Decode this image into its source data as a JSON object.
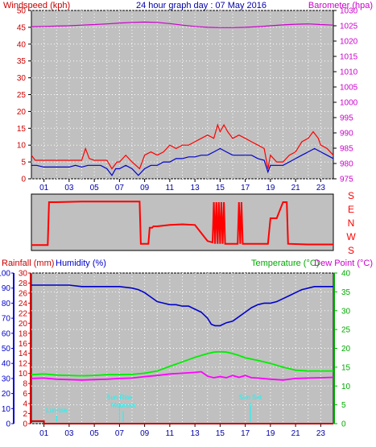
{
  "colors": {
    "plot_bg": "#c0c0c0",
    "grid": "#ffffff",
    "wind_gust": "#ff0000",
    "wind_avg": "#0000cc",
    "barometer": "#cc00cc",
    "direction": "#ff0000",
    "rain": "#cc0000",
    "humidity": "#0000cc",
    "temperature": "#00ee00",
    "dewpoint": "#ff00ff",
    "astro": "#00ffff",
    "title": "#0000aa",
    "axis_red": "#cc0000",
    "axis_magenta": "#cc00cc",
    "axis_green": "#00aa00"
  },
  "header": {
    "title": "24 hour graph day : 07 May 2016",
    "wind_label": "Windspeed (kph)",
    "baro_label": "Barometer (hpa)"
  },
  "direction_panel": {
    "labels": [
      "S",
      "E",
      "N",
      "W",
      "S"
    ]
  },
  "lower_header": {
    "rain_label": "Rainfall (mm)",
    "humidity_label": "Humidity (%)",
    "temp_label": "Temperature (°C)",
    "dew_label": "Dew Point (°C)"
  },
  "astro_labels": {
    "lunar": "Lunrise",
    "sunrise": "Sun Rise",
    "moonset": "Moonset",
    "sunset": "Sun Set"
  },
  "chart_data": [
    {
      "type": "line",
      "title": "24 hour graph day : 07 May 2016",
      "x_ticks": [
        "01",
        "03",
        "05",
        "07",
        "09",
        "11",
        "13",
        "15",
        "17",
        "19",
        "21",
        "23"
      ],
      "xlim": [
        0,
        24
      ],
      "y_left": {
        "label": "Windspeed (kph)",
        "ylim": [
          0,
          50
        ],
        "ticks": [
          0,
          5,
          10,
          15,
          20,
          25,
          30,
          35,
          40,
          45,
          50
        ]
      },
      "y_right": {
        "label": "Barometer (hpa)",
        "ylim": [
          975,
          1030
        ],
        "ticks": [
          975,
          980,
          985,
          990,
          995,
          1000,
          1005,
          1010,
          1015,
          1020,
          1025,
          1030
        ]
      },
      "series": [
        {
          "axis": "left",
          "x": [
            0,
            0.3,
            1,
            2,
            3,
            4,
            4.3,
            4.6,
            5,
            6,
            6.4,
            6.8,
            7,
            7.5,
            8,
            8.6,
            9,
            9.5,
            10,
            10.5,
            11,
            11.5,
            12,
            12.5,
            13,
            13.5,
            14,
            14.5,
            14.8,
            15,
            15.3,
            15.6,
            16,
            16.5,
            17,
            17.5,
            18,
            18.5,
            18.8,
            19,
            19.5,
            20,
            20.5,
            21,
            21.5,
            22,
            22.4,
            22.8,
            23,
            23.5,
            24
          ],
          "values": [
            7,
            5.5,
            5.5,
            5.5,
            5.5,
            5.5,
            9,
            6,
            5.5,
            5.5,
            3,
            5,
            5,
            7,
            5,
            3,
            7,
            8,
            7,
            8,
            10,
            9,
            10,
            10,
            11,
            12,
            13,
            12,
            16,
            14,
            16,
            14,
            12,
            13,
            12,
            11,
            10,
            9,
            3,
            7,
            5,
            5,
            7,
            8,
            11,
            12,
            14,
            12,
            10,
            9,
            7
          ]
        },
        {
          "axis": "left",
          "x": [
            0,
            0.4,
            1,
            2,
            3,
            3.5,
            4,
            4.5,
            5,
            5.5,
            6,
            6.4,
            6.7,
            7,
            7.5,
            8,
            8.5,
            9,
            9.5,
            10,
            10.5,
            11,
            11.5,
            12,
            12.5,
            13,
            13.5,
            14,
            14.5,
            15,
            15.5,
            16,
            16.5,
            17,
            17.5,
            18,
            18.5,
            18.8,
            19,
            19.5,
            20,
            20.5,
            21,
            21.5,
            22,
            22.5,
            23,
            23.5,
            24
          ],
          "values": [
            4,
            4,
            3.5,
            3.5,
            3.5,
            4,
            3.5,
            4,
            4,
            4,
            3,
            1,
            3,
            3,
            4,
            3,
            1,
            3,
            4,
            4,
            5,
            5,
            6,
            6,
            6.5,
            6.5,
            7,
            7,
            8,
            9,
            8,
            7,
            7,
            7,
            7,
            6,
            5.5,
            2,
            4,
            4,
            4,
            5,
            6,
            7,
            8,
            9,
            8,
            7,
            6
          ]
        },
        {
          "axis": "right",
          "x": [
            0,
            1,
            2,
            3,
            4,
            5,
            6,
            7,
            8,
            9,
            10,
            11,
            12,
            13,
            14,
            15,
            16,
            17,
            18,
            19,
            20,
            21,
            22,
            23,
            24
          ],
          "values": [
            1024.7,
            1024.8,
            1024.9,
            1025,
            1025.2,
            1025.4,
            1025.6,
            1025.9,
            1026.1,
            1026.2,
            1026.1,
            1025.7,
            1025.2,
            1024.8,
            1024.5,
            1024.4,
            1024.4,
            1024.5,
            1024.7,
            1025,
            1025.3,
            1025.5,
            1025.6,
            1025.4,
            1025.2
          ]
        }
      ]
    },
    {
      "type": "line",
      "y_ticks": [
        "S",
        "E",
        "N",
        "W",
        "S"
      ],
      "ylim": [
        0,
        360
      ],
      "series": [
        {
          "x": [
            0,
            1.3,
            1.4,
            2,
            4,
            6,
            7,
            8,
            8.6,
            8.7,
            9.3,
            9.4,
            9.6,
            9.7,
            10,
            11,
            12,
            13,
            13.5,
            14,
            14.4,
            14.5,
            14.6,
            14.7,
            14.8,
            14.9,
            15,
            15.1,
            15.2,
            15.3,
            15.4,
            15.5,
            16,
            16.4,
            16.5,
            16.6,
            16.7,
            16.8,
            16.9,
            17,
            18,
            18.8,
            19,
            19.5,
            20,
            20.3,
            20.4,
            22,
            24
          ],
          "values": [
            10,
            10,
            330,
            330,
            335,
            335,
            335,
            335,
            335,
            20,
            20,
            140,
            140,
            150,
            150,
            160,
            165,
            160,
            100,
            40,
            30,
            330,
            20,
            330,
            20,
            330,
            20,
            330,
            20,
            330,
            20,
            20,
            20,
            20,
            330,
            20,
            330,
            20,
            20,
            20,
            20,
            20,
            210,
            210,
            330,
            330,
            20,
            15,
            15
          ]
        }
      ]
    },
    {
      "type": "line",
      "x_ticks": [
        "01",
        "03",
        "05",
        "07",
        "09",
        "11",
        "13",
        "15",
        "17",
        "19",
        "21",
        "23"
      ],
      "xlim": [
        0,
        24
      ],
      "y_humidity": {
        "label": "Humidity (%)",
        "ylim": [
          0,
          100
        ],
        "ticks": [
          0,
          10,
          20,
          30,
          40,
          50,
          60,
          70,
          80,
          90,
          100
        ]
      },
      "y_rain": {
        "label": "Rainfall (mm)",
        "ylim": [
          0,
          30
        ],
        "ticks": [
          0,
          2,
          4,
          6,
          8,
          10,
          12,
          14,
          16,
          18,
          20,
          22,
          24,
          26,
          28,
          30
        ]
      },
      "y_temp": {
        "label": "Temperature (°C)",
        "ylim": [
          0,
          40
        ],
        "ticks": [
          0,
          5,
          10,
          15,
          20,
          25,
          30,
          35,
          40
        ]
      },
      "series": [
        {
          "name": "Humidity (%)",
          "x": [
            0,
            1,
            2,
            3,
            4,
            5,
            6,
            7,
            8,
            8.5,
            9,
            9.5,
            10,
            10.5,
            11,
            11.5,
            12,
            12.5,
            13,
            13.5,
            14,
            14.3,
            14.6,
            15,
            15.5,
            16,
            16.5,
            17,
            17.5,
            18,
            18.5,
            19,
            19.5,
            20,
            20.5,
            21,
            21.5,
            22,
            22.5,
            23,
            24
          ],
          "values": [
            92,
            92,
            92,
            92,
            91,
            91,
            91,
            91,
            90,
            89,
            87,
            84,
            81,
            80,
            79,
            79,
            78,
            78,
            76,
            74,
            70,
            66,
            65,
            65,
            67,
            68,
            71,
            74,
            77,
            79,
            80,
            80,
            81,
            83,
            85,
            87,
            89,
            90,
            91,
            91,
            91
          ]
        },
        {
          "name": "Temperature (°C)",
          "x": [
            0,
            1,
            2,
            3,
            4,
            5,
            6,
            7,
            8,
            9,
            10,
            11,
            12,
            13,
            14,
            14.5,
            15,
            15.5,
            16,
            16.5,
            17,
            18,
            19,
            20,
            21,
            22,
            23,
            24
          ],
          "values": [
            13,
            13.2,
            12.9,
            12.8,
            12.7,
            12.8,
            13,
            13,
            13.1,
            13.4,
            14,
            15.2,
            16.4,
            17.6,
            18.6,
            19,
            19.1,
            19,
            18.6,
            18.1,
            17.5,
            16.8,
            16,
            15,
            14.2,
            14,
            14,
            14
          ]
        },
        {
          "name": "Dew Point (°C)",
          "x": [
            0,
            1,
            2,
            3,
            4,
            5,
            6,
            7,
            8,
            9,
            10,
            11,
            12,
            13,
            13.5,
            14,
            14.5,
            15,
            15.5,
            16,
            16.5,
            17,
            17.5,
            18,
            19,
            20,
            21,
            22,
            23,
            24
          ],
          "values": [
            12,
            12.1,
            11.8,
            11.7,
            11.6,
            11.7,
            11.8,
            12,
            12.1,
            12.5,
            12.8,
            13.2,
            13.4,
            13.6,
            13.8,
            12.6,
            12.2,
            12.5,
            12.2,
            12.8,
            12.3,
            12.8,
            12.2,
            12.1,
            11.8,
            11.6,
            12,
            12.1,
            12.2,
            12.3
          ]
        },
        {
          "name": "Rainfall (mm)",
          "x": [
            0,
            0.99,
            1,
            24
          ],
          "values": [
            0.5,
            0.5,
            0,
            0
          ]
        }
      ],
      "astro_marks": [
        {
          "label": "Lunrise",
          "hour": 2.0
        },
        {
          "label": "Sun Rise",
          "hour": 7.0
        },
        {
          "label": "Moonset",
          "hour": 7.3
        },
        {
          "label": "Sun Set",
          "hour": 17.4
        }
      ]
    }
  ]
}
